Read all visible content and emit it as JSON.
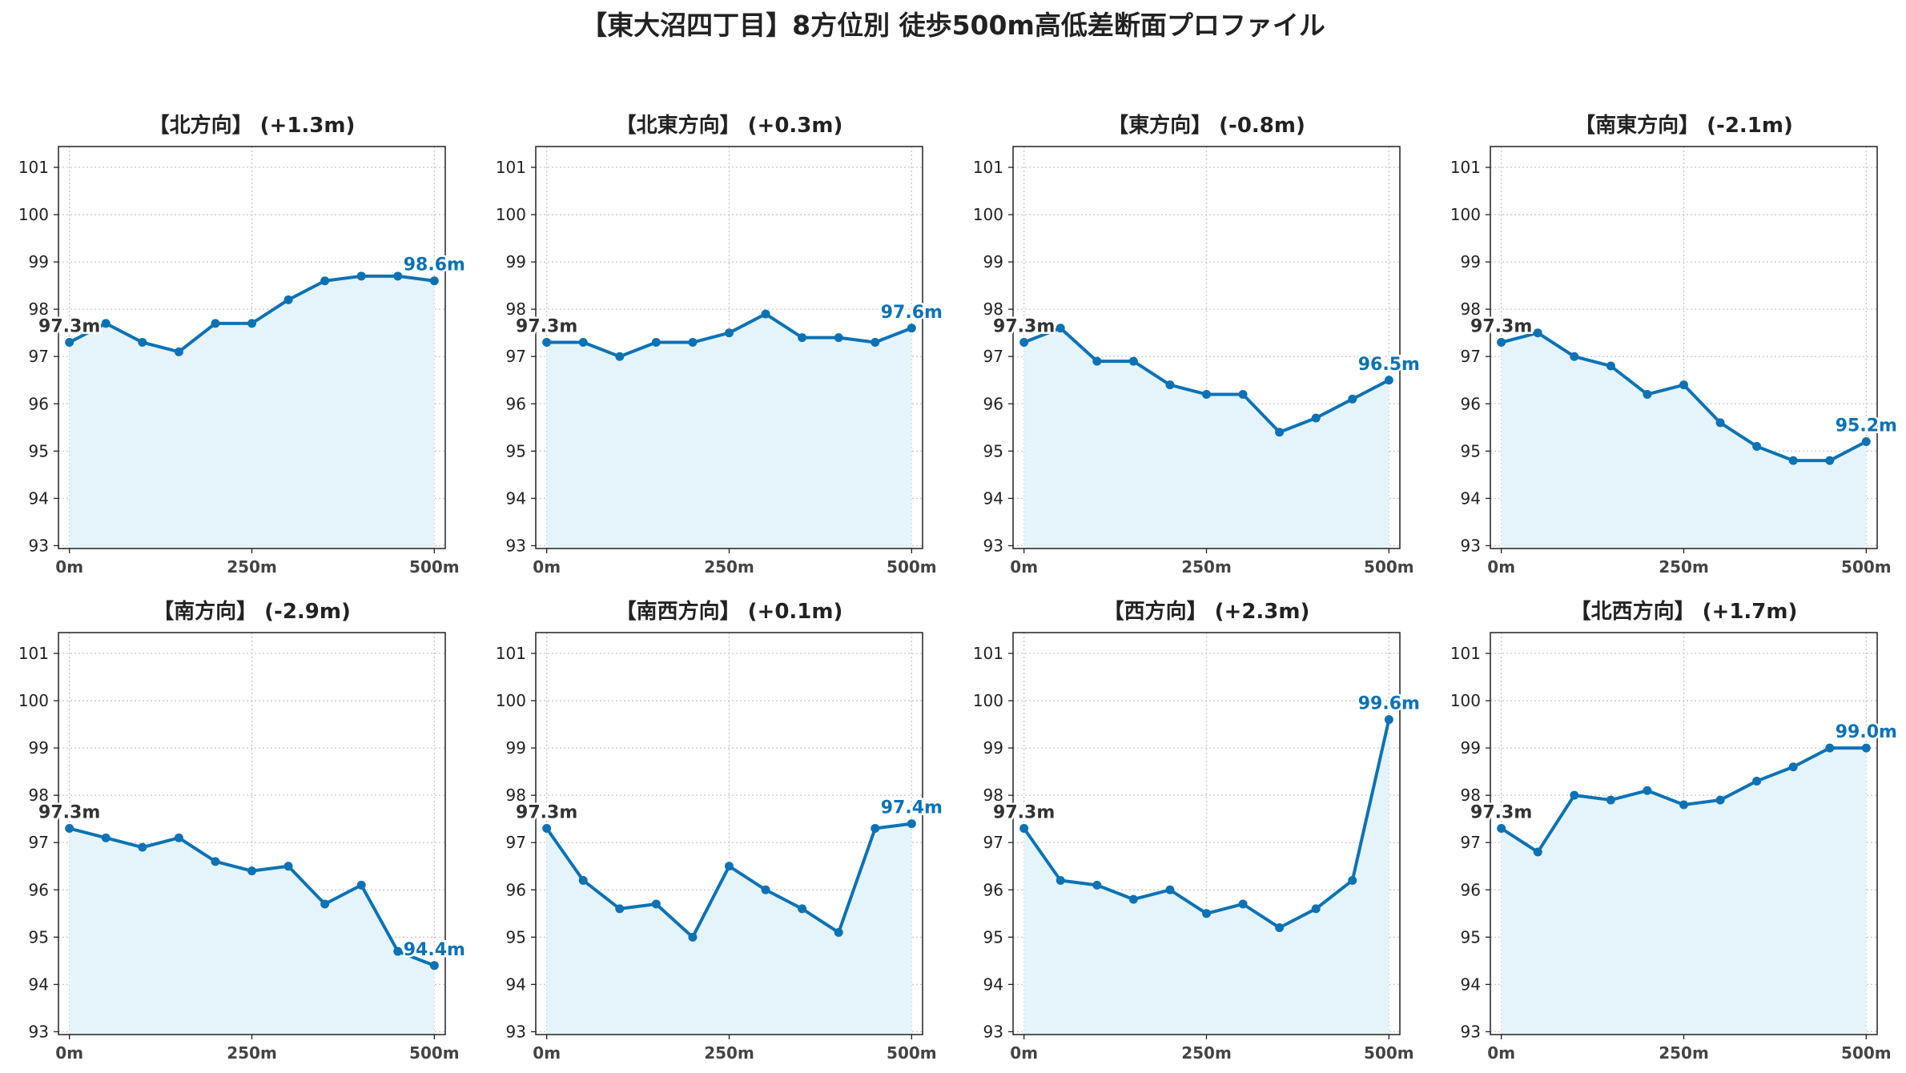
{
  "title": "【東大沼四丁目】8方位別 徒歩500m高低差断面プロファイル",
  "colors": {
    "line": "#0c72b5",
    "fill": "#e4f4fa",
    "start_label": "#333333",
    "grid": "#c8c8c8"
  },
  "chart_data": [
    {
      "type": "area",
      "title": "【北方向】 (+1.3m)",
      "x": [
        0,
        50,
        100,
        150,
        200,
        250,
        300,
        350,
        400,
        450,
        500
      ],
      "xticks": [
        "0m",
        "250m",
        "500m"
      ],
      "ylim": [
        93,
        101
      ],
      "yticks": [
        93,
        94,
        95,
        96,
        97,
        98,
        99,
        100,
        101
      ],
      "grid": true,
      "start_label": "97.3m",
      "end_label": "98.6m",
      "values": [
        97.3,
        97.7,
        97.3,
        97.1,
        97.7,
        97.7,
        98.2,
        98.6,
        98.7,
        98.7,
        98.6
      ]
    },
    {
      "type": "area",
      "title": "【北東方向】 (+0.3m)",
      "x": [
        0,
        50,
        100,
        150,
        200,
        250,
        300,
        350,
        400,
        450,
        500
      ],
      "xticks": [
        "0m",
        "250m",
        "500m"
      ],
      "ylim": [
        93,
        101
      ],
      "yticks": [
        93,
        94,
        95,
        96,
        97,
        98,
        99,
        100,
        101
      ],
      "grid": true,
      "start_label": "97.3m",
      "end_label": "97.6m",
      "values": [
        97.3,
        97.3,
        97.0,
        97.3,
        97.3,
        97.5,
        97.9,
        97.4,
        97.4,
        97.3,
        97.6
      ]
    },
    {
      "type": "area",
      "title": "【東方向】 (-0.8m)",
      "x": [
        0,
        50,
        100,
        150,
        200,
        250,
        300,
        350,
        400,
        450,
        500
      ],
      "xticks": [
        "0m",
        "250m",
        "500m"
      ],
      "ylim": [
        93,
        101
      ],
      "yticks": [
        93,
        94,
        95,
        96,
        97,
        98,
        99,
        100,
        101
      ],
      "grid": true,
      "start_label": "97.3m",
      "end_label": "96.5m",
      "values": [
        97.3,
        97.6,
        96.9,
        96.9,
        96.4,
        96.2,
        96.2,
        95.4,
        95.7,
        96.1,
        96.5
      ]
    },
    {
      "type": "area",
      "title": "【南東方向】 (-2.1m)",
      "x": [
        0,
        50,
        100,
        150,
        200,
        250,
        300,
        350,
        400,
        450,
        500
      ],
      "xticks": [
        "0m",
        "250m",
        "500m"
      ],
      "ylim": [
        93,
        101
      ],
      "yticks": [
        93,
        94,
        95,
        96,
        97,
        98,
        99,
        100,
        101
      ],
      "grid": true,
      "start_label": "97.3m",
      "end_label": "95.2m",
      "values": [
        97.3,
        97.5,
        97.0,
        96.8,
        96.2,
        96.4,
        95.6,
        95.1,
        94.8,
        94.8,
        95.2
      ]
    },
    {
      "type": "area",
      "title": "【南方向】 (-2.9m)",
      "x": [
        0,
        50,
        100,
        150,
        200,
        250,
        300,
        350,
        400,
        450,
        500
      ],
      "xticks": [
        "0m",
        "250m",
        "500m"
      ],
      "ylim": [
        93,
        101
      ],
      "yticks": [
        93,
        94,
        95,
        96,
        97,
        98,
        99,
        100,
        101
      ],
      "grid": true,
      "start_label": "97.3m",
      "end_label": "94.4m",
      "values": [
        97.3,
        97.1,
        96.9,
        97.1,
        96.6,
        96.4,
        96.5,
        95.7,
        96.1,
        94.7,
        94.4
      ]
    },
    {
      "type": "area",
      "title": "【南西方向】 (+0.1m)",
      "x": [
        0,
        50,
        100,
        150,
        200,
        250,
        300,
        350,
        400,
        450,
        500
      ],
      "xticks": [
        "0m",
        "250m",
        "500m"
      ],
      "ylim": [
        93,
        101
      ],
      "yticks": [
        93,
        94,
        95,
        96,
        97,
        98,
        99,
        100,
        101
      ],
      "grid": true,
      "start_label": "97.3m",
      "end_label": "97.4m",
      "values": [
        97.3,
        96.2,
        95.6,
        95.7,
        95.0,
        96.5,
        96.0,
        95.6,
        95.1,
        97.3,
        97.4
      ]
    },
    {
      "type": "area",
      "title": "【西方向】 (+2.3m)",
      "x": [
        0,
        50,
        100,
        150,
        200,
        250,
        300,
        350,
        400,
        450,
        500
      ],
      "xticks": [
        "0m",
        "250m",
        "500m"
      ],
      "ylim": [
        93,
        101
      ],
      "yticks": [
        93,
        94,
        95,
        96,
        97,
        98,
        99,
        100,
        101
      ],
      "grid": true,
      "start_label": "97.3m",
      "end_label": "99.6m",
      "values": [
        97.3,
        96.2,
        96.1,
        95.8,
        96.0,
        95.5,
        95.7,
        95.2,
        95.6,
        96.2,
        99.6
      ]
    },
    {
      "type": "area",
      "title": "【北西方向】 (+1.7m)",
      "x": [
        0,
        50,
        100,
        150,
        200,
        250,
        300,
        350,
        400,
        450,
        500
      ],
      "xticks": [
        "0m",
        "250m",
        "500m"
      ],
      "ylim": [
        93,
        101
      ],
      "yticks": [
        93,
        94,
        95,
        96,
        97,
        98,
        99,
        100,
        101
      ],
      "grid": true,
      "start_label": "97.3m",
      "end_label": "99.0m",
      "values": [
        97.3,
        96.8,
        98.0,
        97.9,
        98.1,
        97.8,
        97.9,
        98.3,
        98.6,
        99.0,
        99.0
      ]
    }
  ]
}
